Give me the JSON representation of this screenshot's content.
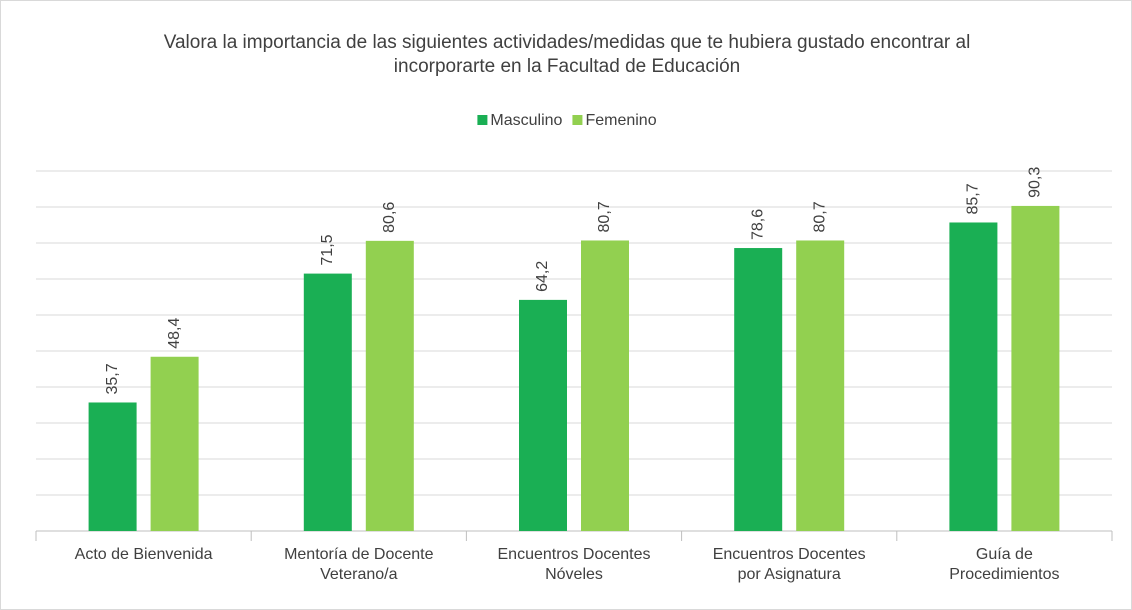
{
  "chart_data": {
    "type": "bar",
    "title": "Valora la importancia de las siguientes actividades/medidas que te hubiera gustado encontrar al incorporarte en la Facultad de Educación",
    "categories": [
      "Acto de Bienvenida",
      "Mentoría de Docente Veterano/a",
      "Encuentros Docentes Nóveles",
      "Encuentros Docentes por Asignatura",
      "Guía de Procedimientos"
    ],
    "series": [
      {
        "name": "Masculino",
        "color": "#1aaf54",
        "values": [
          35.7,
          71.5,
          64.2,
          78.6,
          85.7
        ],
        "value_labels": [
          "35,7",
          "71,5",
          "64,2",
          "78,6",
          "85,7"
        ]
      },
      {
        "name": "Femenino",
        "color": "#92d050",
        "values": [
          48.4,
          80.6,
          80.7,
          80.7,
          90.3
        ],
        "value_labels": [
          "48,4",
          "80,6",
          "80,7",
          "80,7",
          "90,3"
        ]
      }
    ],
    "ylim": [
      0,
      100
    ],
    "yticks": [
      0,
      10,
      20,
      30,
      40,
      50,
      60,
      70,
      80,
      90,
      100
    ],
    "grid": true,
    "legend": "top"
  }
}
